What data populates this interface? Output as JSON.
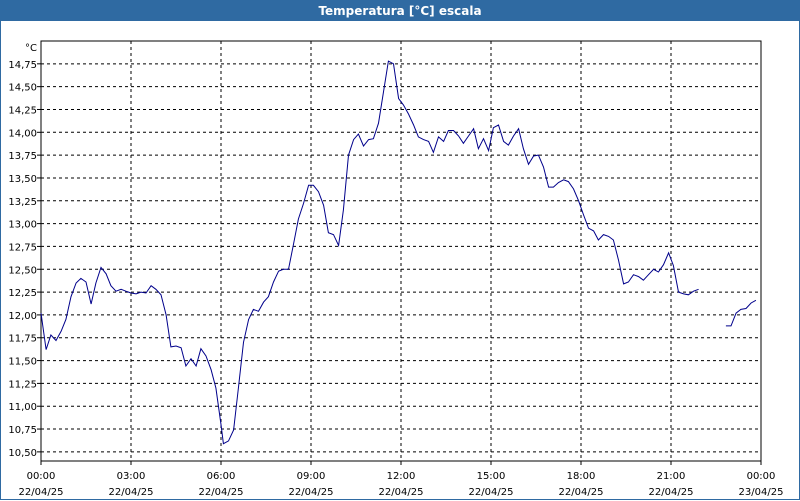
{
  "window": {
    "title": "Temperatura [°C] escala"
  },
  "colors": {
    "titlebar": "#2f6aa2",
    "line": "#00008b",
    "grid": "#000000"
  },
  "chart_data": {
    "type": "line",
    "title": "Temperatura [°C] escala",
    "ylabel": "°C",
    "xlabel": "",
    "ylim": [
      10.4,
      15.0
    ],
    "xlim": [
      0,
      24
    ],
    "grid": true,
    "y_ticks": [
      "10,50",
      "10,75",
      "11,00",
      "11,25",
      "11,50",
      "11,75",
      "12,00",
      "12,25",
      "12,50",
      "12,75",
      "13,00",
      "13,25",
      "13,50",
      "13,75",
      "14,00",
      "14,25",
      "14,50",
      "14,75"
    ],
    "x_ticks": [
      {
        "time": "00:00",
        "date": "22/04/25"
      },
      {
        "time": "03:00",
        "date": "22/04/25"
      },
      {
        "time": "06:00",
        "date": "22/04/25"
      },
      {
        "time": "09:00",
        "date": "22/04/25"
      },
      {
        "time": "12:00",
        "date": "22/04/25"
      },
      {
        "time": "15:00",
        "date": "22/04/25"
      },
      {
        "time": "18:00",
        "date": "22/04/25"
      },
      {
        "time": "21:00",
        "date": "22/04/25"
      },
      {
        "time": "00:00",
        "date": "23/04/25"
      }
    ],
    "series": [
      {
        "segments": [
          [
            [
              0.0,
              12.02
            ],
            [
              0.17,
              11.62
            ],
            [
              0.33,
              11.78
            ],
            [
              0.5,
              11.72
            ],
            [
              0.67,
              11.82
            ],
            [
              0.83,
              11.95
            ],
            [
              1.0,
              12.2
            ],
            [
              1.17,
              12.35
            ],
            [
              1.33,
              12.4
            ],
            [
              1.5,
              12.36
            ],
            [
              1.67,
              12.12
            ],
            [
              1.83,
              12.35
            ],
            [
              2.0,
              12.52
            ],
            [
              2.17,
              12.45
            ],
            [
              2.33,
              12.32
            ],
            [
              2.5,
              12.26
            ],
            [
              2.67,
              12.28
            ],
            [
              2.83,
              12.26
            ],
            [
              3.0,
              12.24
            ],
            [
              3.17,
              12.23
            ],
            [
              3.33,
              12.25
            ],
            [
              3.5,
              12.24
            ],
            [
              3.67,
              12.32
            ],
            [
              3.83,
              12.28
            ],
            [
              4.0,
              12.22
            ],
            [
              4.17,
              12.0
            ],
            [
              4.33,
              11.65
            ],
            [
              4.5,
              11.66
            ],
            [
              4.67,
              11.64
            ],
            [
              4.83,
              11.44
            ],
            [
              5.0,
              11.52
            ],
            [
              5.17,
              11.44
            ],
            [
              5.33,
              11.63
            ],
            [
              5.5,
              11.55
            ],
            [
              5.67,
              11.4
            ],
            [
              5.83,
              11.2
            ],
            [
              6.0,
              10.8
            ],
            [
              6.08,
              10.59
            ],
            [
              6.25,
              10.62
            ],
            [
              6.42,
              10.74
            ],
            [
              6.58,
              11.2
            ],
            [
              6.75,
              11.7
            ],
            [
              6.92,
              11.95
            ],
            [
              7.08,
              12.06
            ],
            [
              7.25,
              12.04
            ],
            [
              7.42,
              12.14
            ],
            [
              7.58,
              12.2
            ],
            [
              7.75,
              12.36
            ],
            [
              7.92,
              12.48
            ],
            [
              8.08,
              12.5
            ],
            [
              8.25,
              12.5
            ],
            [
              8.42,
              12.78
            ],
            [
              8.58,
              13.05
            ],
            [
              8.75,
              13.22
            ],
            [
              8.92,
              13.42
            ],
            [
              9.08,
              13.42
            ],
            [
              9.25,
              13.35
            ],
            [
              9.42,
              13.2
            ],
            [
              9.58,
              12.9
            ],
            [
              9.75,
              12.88
            ],
            [
              9.92,
              12.76
            ],
            [
              10.08,
              13.15
            ],
            [
              10.25,
              13.75
            ],
            [
              10.42,
              13.92
            ],
            [
              10.58,
              13.98
            ],
            [
              10.75,
              13.85
            ],
            [
              10.92,
              13.92
            ],
            [
              11.08,
              13.93
            ],
            [
              11.25,
              14.1
            ],
            [
              11.42,
              14.45
            ],
            [
              11.58,
              14.78
            ],
            [
              11.75,
              14.75
            ],
            [
              11.92,
              14.37
            ],
            [
              12.08,
              14.3
            ],
            [
              12.25,
              14.2
            ],
            [
              12.42,
              14.08
            ],
            [
              12.58,
              13.95
            ],
            [
              12.75,
              13.92
            ],
            [
              12.92,
              13.9
            ],
            [
              13.08,
              13.78
            ],
            [
              13.25,
              13.95
            ],
            [
              13.42,
              13.9
            ],
            [
              13.58,
              14.02
            ],
            [
              13.75,
              14.02
            ],
            [
              13.92,
              13.96
            ],
            [
              14.08,
              13.88
            ],
            [
              14.25,
              13.96
            ],
            [
              14.42,
              14.04
            ],
            [
              14.58,
              13.82
            ],
            [
              14.75,
              13.93
            ],
            [
              14.92,
              13.8
            ],
            [
              15.08,
              14.05
            ],
            [
              15.25,
              14.08
            ],
            [
              15.42,
              13.9
            ],
            [
              15.58,
              13.86
            ],
            [
              15.75,
              13.96
            ],
            [
              15.92,
              14.04
            ],
            [
              16.08,
              13.82
            ],
            [
              16.25,
              13.65
            ],
            [
              16.42,
              13.74
            ],
            [
              16.58,
              13.75
            ],
            [
              16.75,
              13.62
            ],
            [
              16.92,
              13.4
            ],
            [
              17.08,
              13.4
            ],
            [
              17.25,
              13.45
            ],
            [
              17.42,
              13.48
            ],
            [
              17.58,
              13.46
            ],
            [
              17.75,
              13.38
            ],
            [
              17.92,
              13.25
            ],
            [
              18.08,
              13.1
            ],
            [
              18.25,
              12.95
            ],
            [
              18.42,
              12.92
            ],
            [
              18.58,
              12.82
            ],
            [
              18.75,
              12.88
            ],
            [
              18.92,
              12.86
            ],
            [
              19.08,
              12.82
            ],
            [
              19.25,
              12.6
            ],
            [
              19.42,
              12.34
            ],
            [
              19.58,
              12.36
            ],
            [
              19.75,
              12.44
            ],
            [
              19.92,
              12.42
            ],
            [
              20.08,
              12.38
            ],
            [
              20.25,
              12.44
            ],
            [
              20.42,
              12.5
            ],
            [
              20.58,
              12.47
            ],
            [
              20.75,
              12.55
            ],
            [
              20.92,
              12.68
            ],
            [
              21.08,
              12.54
            ],
            [
              21.25,
              12.25
            ],
            [
              21.42,
              12.23
            ],
            [
              21.58,
              12.22
            ],
            [
              21.75,
              12.26
            ],
            [
              21.92,
              12.28
            ]
          ],
          [
            [
              22.83,
              11.88
            ],
            [
              23.0,
              11.88
            ],
            [
              23.17,
              12.02
            ],
            [
              23.33,
              12.06
            ],
            [
              23.5,
              12.07
            ],
            [
              23.67,
              12.13
            ],
            [
              23.83,
              12.16
            ]
          ]
        ]
      }
    ]
  }
}
